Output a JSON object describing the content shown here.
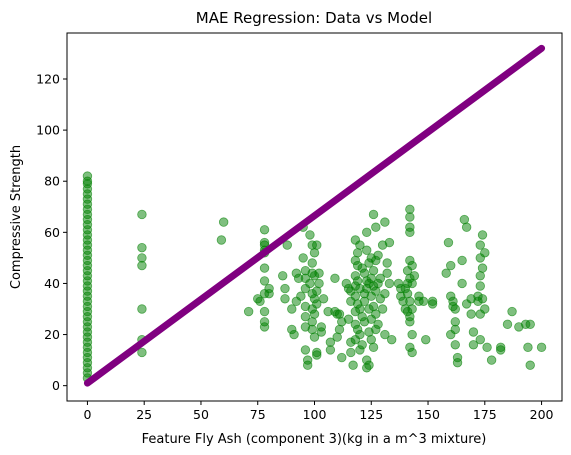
{
  "chart_data": {
    "type": "scatter",
    "title": "MAE Regression: Data vs Model",
    "xlabel": "Feature Fly Ash (component 3)(kg in a m^3 mixture)",
    "ylabel": "Compressive Strength",
    "xlim": [
      -9,
      209
    ],
    "ylim": [
      -6,
      138
    ],
    "xticks": [
      0,
      25,
      50,
      75,
      100,
      125,
      150,
      175,
      200
    ],
    "yticks": [
      0,
      20,
      40,
      60,
      80,
      100,
      120
    ],
    "grid": false,
    "colors": {
      "data": "#008000",
      "model": "#800080"
    },
    "series": [
      {
        "kind": "scatter",
        "points": [
          [
            0,
            3
          ],
          [
            0,
            5
          ],
          [
            0,
            7
          ],
          [
            0,
            9
          ],
          [
            0,
            11
          ],
          [
            0,
            13
          ],
          [
            0,
            15
          ],
          [
            0,
            17
          ],
          [
            0,
            19
          ],
          [
            0,
            21
          ],
          [
            0,
            23
          ],
          [
            0,
            25
          ],
          [
            0,
            27
          ],
          [
            0,
            29
          ],
          [
            0,
            31
          ],
          [
            0,
            33
          ],
          [
            0,
            35
          ],
          [
            0,
            37
          ],
          [
            0,
            39
          ],
          [
            0,
            41
          ],
          [
            0,
            43
          ],
          [
            0,
            45
          ],
          [
            0,
            47
          ],
          [
            0,
            49
          ],
          [
            0,
            51
          ],
          [
            0,
            53
          ],
          [
            0,
            55
          ],
          [
            0,
            57
          ],
          [
            0,
            59
          ],
          [
            0,
            61
          ],
          [
            0,
            63
          ],
          [
            0,
            65
          ],
          [
            0,
            67
          ],
          [
            0,
            69
          ],
          [
            0,
            71
          ],
          [
            0,
            73
          ],
          [
            0,
            75
          ],
          [
            0,
            77
          ],
          [
            0,
            79
          ],
          [
            0,
            80
          ],
          [
            0,
            82
          ],
          [
            24,
            67
          ],
          [
            24,
            54
          ],
          [
            24,
            50
          ],
          [
            24,
            47
          ],
          [
            24,
            30
          ],
          [
            24,
            18
          ],
          [
            24,
            13
          ],
          [
            60,
            64
          ],
          [
            59,
            57
          ],
          [
            71,
            29
          ],
          [
            75,
            34
          ],
          [
            76,
            33
          ],
          [
            78,
            61
          ],
          [
            78,
            56
          ],
          [
            78,
            55
          ],
          [
            78,
            53
          ],
          [
            78,
            52
          ],
          [
            78,
            46
          ],
          [
            78,
            41
          ],
          [
            78,
            36
          ],
          [
            78,
            29
          ],
          [
            78,
            25
          ],
          [
            78,
            23
          ],
          [
            80,
            38
          ],
          [
            80,
            36
          ],
          [
            86,
            43
          ],
          [
            87,
            38
          ],
          [
            87,
            34
          ],
          [
            88,
            55
          ],
          [
            90,
            30
          ],
          [
            90,
            22
          ],
          [
            91,
            20
          ],
          [
            92,
            44
          ],
          [
            92,
            33
          ],
          [
            93,
            42
          ],
          [
            94,
            35
          ],
          [
            95,
            62
          ],
          [
            95,
            50
          ],
          [
            96,
            45
          ],
          [
            96,
            42
          ],
          [
            96,
            38
          ],
          [
            96,
            31
          ],
          [
            96,
            27
          ],
          [
            96,
            23
          ],
          [
            96,
            14
          ],
          [
            97,
            10
          ],
          [
            97,
            8
          ],
          [
            98,
            59
          ],
          [
            98,
            40
          ],
          [
            99,
            55
          ],
          [
            99,
            48
          ],
          [
            99,
            44
          ],
          [
            99,
            36
          ],
          [
            99,
            30
          ],
          [
            99,
            25
          ],
          [
            99,
            22
          ],
          [
            100,
            52
          ],
          [
            100,
            43
          ],
          [
            100,
            34
          ],
          [
            100,
            28
          ],
          [
            100,
            19
          ],
          [
            101,
            55
          ],
          [
            101,
            37
          ],
          [
            101,
            32
          ],
          [
            101,
            13
          ],
          [
            101,
            12
          ],
          [
            102,
            44
          ],
          [
            102,
            40
          ],
          [
            103,
            23
          ],
          [
            103,
            21
          ],
          [
            104,
            34
          ],
          [
            106,
            29
          ],
          [
            107,
            17
          ],
          [
            107,
            14
          ],
          [
            109,
            42
          ],
          [
            109,
            29
          ],
          [
            110,
            28
          ],
          [
            110,
            19
          ],
          [
            111,
            28
          ],
          [
            111,
            22
          ],
          [
            112,
            25
          ],
          [
            112,
            11
          ],
          [
            114,
            40
          ],
          [
            115,
            38
          ],
          [
            115,
            26
          ],
          [
            116,
            37
          ],
          [
            116,
            33
          ],
          [
            116,
            17
          ],
          [
            116,
            13
          ],
          [
            117,
            8
          ],
          [
            118,
            57
          ],
          [
            118,
            49
          ],
          [
            118,
            43
          ],
          [
            118,
            39
          ],
          [
            118,
            35
          ],
          [
            118,
            29
          ],
          [
            118,
            24
          ],
          [
            118,
            18
          ],
          [
            119,
            52
          ],
          [
            119,
            47
          ],
          [
            119,
            41
          ],
          [
            119,
            32
          ],
          [
            119,
            22
          ],
          [
            120,
            55
          ],
          [
            120,
            38
          ],
          [
            120,
            30
          ],
          [
            120,
            20
          ],
          [
            120,
            14
          ],
          [
            121,
            46
          ],
          [
            121,
            27
          ],
          [
            121,
            16
          ],
          [
            122,
            44
          ],
          [
            122,
            36
          ],
          [
            122,
            33
          ],
          [
            122,
            25
          ],
          [
            123,
            60
          ],
          [
            123,
            53
          ],
          [
            123,
            41
          ],
          [
            123,
            38
          ],
          [
            123,
            10
          ],
          [
            123,
            7
          ],
          [
            124,
            48
          ],
          [
            124,
            40
          ],
          [
            124,
            30
          ],
          [
            124,
            21
          ],
          [
            124,
            8
          ],
          [
            125,
            50
          ],
          [
            125,
            42
          ],
          [
            125,
            35
          ],
          [
            125,
            26
          ],
          [
            125,
            18
          ],
          [
            126,
            67
          ],
          [
            126,
            45
          ],
          [
            126,
            39
          ],
          [
            126,
            31
          ],
          [
            126,
            15
          ],
          [
            127,
            62
          ],
          [
            127,
            49
          ],
          [
            127,
            37
          ],
          [
            127,
            28
          ],
          [
            127,
            22
          ],
          [
            128,
            51
          ],
          [
            128,
            40
          ],
          [
            128,
            24
          ],
          [
            129,
            42
          ],
          [
            129,
            34
          ],
          [
            130,
            55
          ],
          [
            130,
            30
          ],
          [
            131,
            64
          ],
          [
            131,
            36
          ],
          [
            131,
            20
          ],
          [
            132,
            48
          ],
          [
            132,
            44
          ],
          [
            133,
            56
          ],
          [
            133,
            40
          ],
          [
            134,
            18
          ],
          [
            137,
            40
          ],
          [
            138,
            38
          ],
          [
            138,
            35
          ],
          [
            139,
            33
          ],
          [
            140,
            38
          ],
          [
            140,
            30
          ],
          [
            141,
            45
          ],
          [
            141,
            40
          ],
          [
            141,
            36
          ],
          [
            141,
            29
          ],
          [
            142,
            69
          ],
          [
            142,
            66
          ],
          [
            142,
            62
          ],
          [
            142,
            60
          ],
          [
            142,
            49
          ],
          [
            142,
            42
          ],
          [
            142,
            33
          ],
          [
            142,
            27
          ],
          [
            142,
            25
          ],
          [
            142,
            15
          ],
          [
            143,
            47
          ],
          [
            143,
            40
          ],
          [
            143,
            30
          ],
          [
            143,
            20
          ],
          [
            143,
            13
          ],
          [
            144,
            43
          ],
          [
            146,
            35
          ],
          [
            146,
            33
          ],
          [
            148,
            33
          ],
          [
            149,
            18
          ],
          [
            152,
            33
          ],
          [
            152,
            32
          ],
          [
            158,
            44
          ],
          [
            159,
            56
          ],
          [
            160,
            47
          ],
          [
            160,
            35
          ],
          [
            160,
            20
          ],
          [
            161,
            33
          ],
          [
            161,
            31
          ],
          [
            162,
            30
          ],
          [
            162,
            25
          ],
          [
            162,
            22
          ],
          [
            162,
            16
          ],
          [
            163,
            11
          ],
          [
            163,
            9
          ],
          [
            165,
            49
          ],
          [
            165,
            40
          ],
          [
            166,
            65
          ],
          [
            167,
            62
          ],
          [
            167,
            32
          ],
          [
            169,
            34
          ],
          [
            169,
            28
          ],
          [
            170,
            21
          ],
          [
            170,
            16
          ],
          [
            172,
            35
          ],
          [
            172,
            33
          ],
          [
            173,
            55
          ],
          [
            173,
            50
          ],
          [
            173,
            43
          ],
          [
            173,
            39
          ],
          [
            173,
            28
          ],
          [
            173,
            18
          ],
          [
            174,
            59
          ],
          [
            174,
            46
          ],
          [
            174,
            34
          ],
          [
            175,
            52
          ],
          [
            175,
            30
          ],
          [
            176,
            15
          ],
          [
            178,
            10
          ],
          [
            182,
            15
          ],
          [
            182,
            14
          ],
          [
            185,
            24
          ],
          [
            187,
            29
          ],
          [
            190,
            23
          ],
          [
            193,
            24
          ],
          [
            194,
            15
          ],
          [
            195,
            24
          ],
          [
            195,
            8
          ],
          [
            200,
            15
          ]
        ]
      },
      {
        "kind": "line",
        "x": [
          0,
          200
        ],
        "y": [
          1,
          132
        ]
      }
    ]
  }
}
